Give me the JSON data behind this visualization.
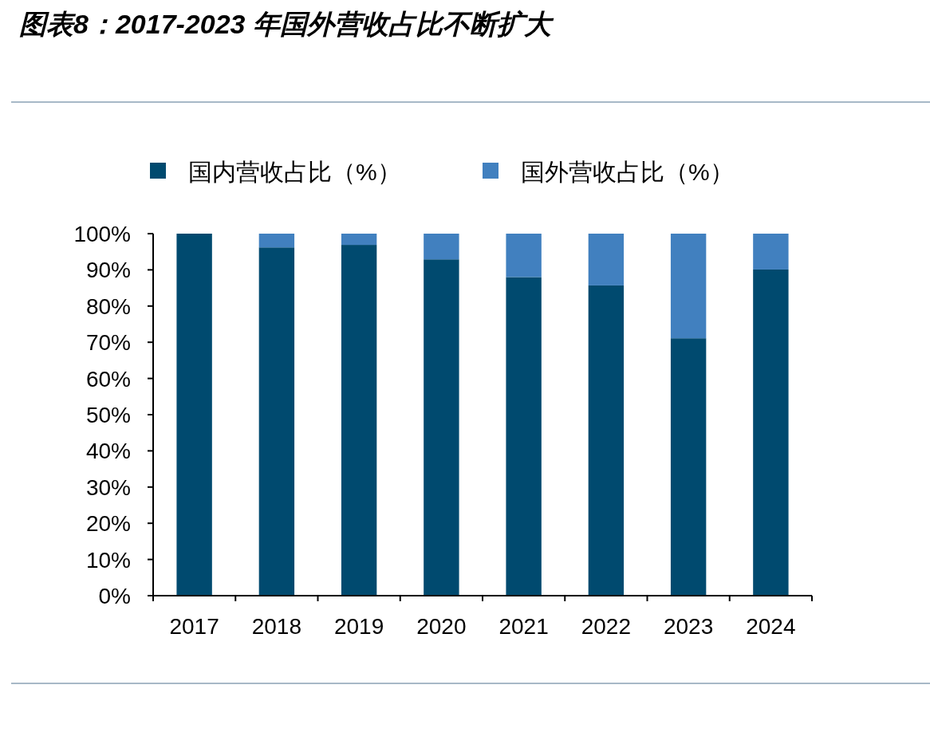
{
  "chart_data": {
    "type": "bar",
    "stacked": true,
    "title": "图表8：2017-2023 年国外营收占比不断扩大",
    "categories": [
      "2017",
      "2018",
      "2019",
      "2020",
      "2021",
      "2022",
      "2023",
      "2024"
    ],
    "series": [
      {
        "name": "国内营收占比（%）",
        "color": "#004a6f",
        "values": [
          100,
          96.2,
          96.9,
          92.9,
          88.0,
          85.7,
          71.1,
          90.1
        ]
      },
      {
        "name": "国外营收占比（%）",
        "color": "#4180bf",
        "values": [
          0,
          3.8,
          3.1,
          7.1,
          12.0,
          14.3,
          28.9,
          9.9
        ]
      }
    ],
    "ylim": [
      0,
      100
    ],
    "yticks": [
      {
        "value": 0,
        "label": "0%"
      },
      {
        "value": 10,
        "label": "10%"
      },
      {
        "value": 20,
        "label": "20%"
      },
      {
        "value": 30,
        "label": "30%"
      },
      {
        "value": 40,
        "label": "40%"
      },
      {
        "value": 50,
        "label": "50%"
      },
      {
        "value": 60,
        "label": "60%"
      },
      {
        "value": 70,
        "label": "70%"
      },
      {
        "value": 80,
        "label": "80%"
      },
      {
        "value": 90,
        "label": "90%"
      },
      {
        "value": 100,
        "label": "100%"
      }
    ],
    "legend": "top"
  }
}
